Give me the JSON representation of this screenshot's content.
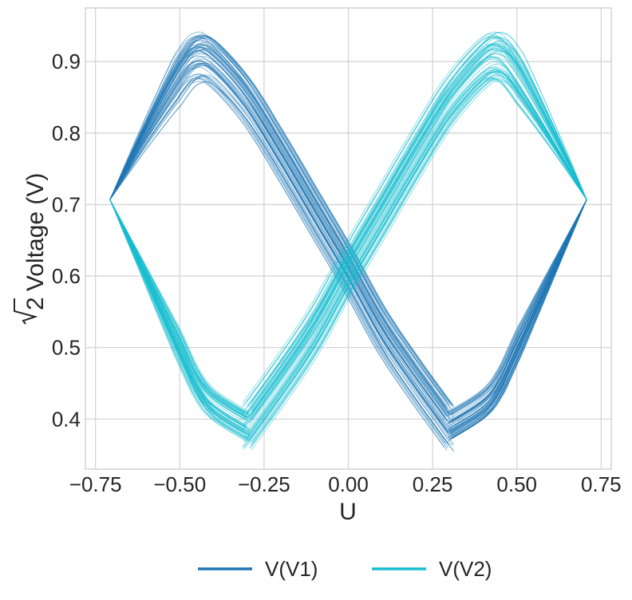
{
  "chart_data": {
    "type": "line",
    "title": "",
    "xlabel": "U",
    "ylabel_radical": "2",
    "ylabel_text": "Voltage (V)",
    "xlim": [
      -0.78,
      0.78
    ],
    "ylim": [
      0.33,
      0.975
    ],
    "grid": true,
    "legend_position": "bottom-center",
    "x_ticks": [
      -0.75,
      -0.5,
      -0.25,
      0.0,
      0.25,
      0.5,
      0.75
    ],
    "x_tick_labels": [
      "−0.75",
      "−0.50",
      "−0.25",
      "0.00",
      "0.25",
      "0.50",
      "0.75"
    ],
    "y_ticks": [
      0.4,
      0.5,
      0.6,
      0.7,
      0.8,
      0.9
    ],
    "y_tick_labels": [
      "0.4",
      "0.5",
      "0.6",
      "0.7",
      "0.8",
      "0.9"
    ],
    "series": [
      {
        "name": "V(V1)",
        "color": "#1f77b4",
        "trace_count": 60,
        "upper_branch": {
          "x": [
            -0.707,
            -0.6,
            -0.5,
            -0.45,
            -0.4,
            -0.3,
            -0.2,
            -0.1,
            0.0,
            0.1,
            0.2,
            0.3
          ],
          "y": [
            0.707,
            0.8,
            0.88,
            0.905,
            0.898,
            0.845,
            0.77,
            0.69,
            0.61,
            0.525,
            0.455,
            0.39
          ]
        },
        "lower_branch": {
          "x": [
            0.707,
            0.6,
            0.5,
            0.45,
            0.4,
            0.3
          ],
          "y": [
            0.707,
            0.6,
            0.5,
            0.45,
            0.42,
            0.39
          ]
        },
        "y_spread": 0.035
      },
      {
        "name": "V(V2)",
        "color": "#17becf",
        "trace_count": 60,
        "upper_branch": {
          "x": [
            -0.3,
            -0.2,
            -0.1,
            0.0,
            0.1,
            0.2,
            0.3,
            0.4,
            0.45,
            0.5,
            0.6,
            0.707
          ],
          "y": [
            0.39,
            0.455,
            0.525,
            0.61,
            0.69,
            0.77,
            0.845,
            0.898,
            0.905,
            0.88,
            0.8,
            0.707
          ]
        },
        "lower_branch": {
          "x": [
            -0.707,
            -0.6,
            -0.5,
            -0.45,
            -0.4,
            -0.3
          ],
          "y": [
            0.707,
            0.6,
            0.5,
            0.45,
            0.42,
            0.39
          ]
        },
        "y_spread": 0.035
      }
    ]
  }
}
